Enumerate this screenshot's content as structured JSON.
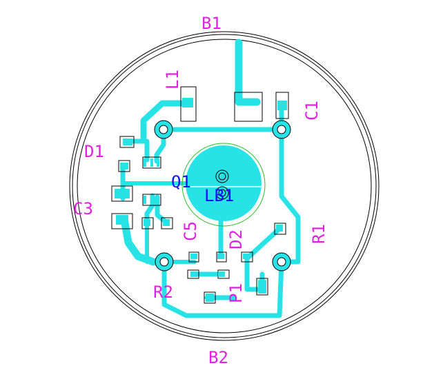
{
  "colors": {
    "copper": "#27e3e6",
    "silkscreen": "#e020e0",
    "copper_text": "#1010ff",
    "outline": "#000000",
    "keepout_circle": "#22c022",
    "background": "#ffffff"
  },
  "labels": {
    "B1": "B1",
    "B2": "B2",
    "L1": "L1",
    "C1": "C1",
    "D1": "D1",
    "Q1": "Q1",
    "LB1": "LB1",
    "C3": "C3",
    "C5": "C5",
    "D2": "D2",
    "R1": "R1",
    "R2": "R2",
    "P1": "P1"
  }
}
